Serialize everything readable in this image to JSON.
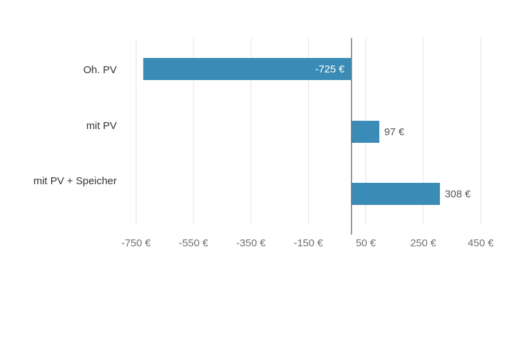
{
  "chart_data": {
    "type": "bar",
    "orientation": "horizontal",
    "categories": [
      "Oh. PV",
      "mit PV",
      "mit PV + Speicher"
    ],
    "values": [
      -725,
      97,
      308
    ],
    "value_labels": [
      "-725 €",
      "97 €",
      "308 €"
    ],
    "xlim": [
      -800,
      450
    ],
    "xticks": [
      -750,
      -550,
      -350,
      -150,
      50,
      250,
      450
    ],
    "xtick_labels": [
      "-750 €",
      "-550 €",
      "-350 €",
      "-150 €",
      "50 €",
      "250 €",
      "450 €"
    ],
    "grid": true,
    "title": "",
    "xlabel": "",
    "ylabel": "",
    "colors": {
      "bar": "#3a8bb5",
      "grid": "#e2e2e2",
      "zero_line": "#7d7468",
      "inside_label": "#ffffff",
      "outside_label": "#555555"
    }
  }
}
